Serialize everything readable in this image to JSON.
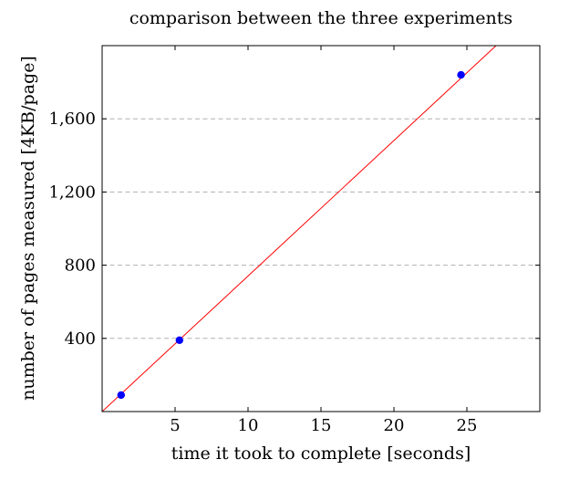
{
  "chart_data": {
    "type": "scatter",
    "title": "comparison between the three experiments",
    "xlabel": "time it took to complete [seconds]",
    "ylabel": "number of pages measured [4KB/page]",
    "xlim": [
      0,
      30
    ],
    "ylim": [
      0,
      2000
    ],
    "x_ticks": [
      5,
      10,
      15,
      20,
      25
    ],
    "x_tick_labels": [
      "5",
      "10",
      "15",
      "20",
      "25"
    ],
    "y_ticks": [
      400,
      800,
      1200,
      1600
    ],
    "y_tick_labels": [
      "400",
      "800",
      "1,200",
      "1,600"
    ],
    "grid": "horizontal dashed",
    "points": [
      {
        "x": 1.3,
        "y": 90
      },
      {
        "x": 5.3,
        "y": 390
      },
      {
        "x": 24.6,
        "y": 1840
      }
    ],
    "trend_line": {
      "x": [
        0,
        27
      ],
      "y": [
        0,
        2000
      ]
    },
    "colors": {
      "points": "#0000ff",
      "trend_line": "#ff0000",
      "grid": "#b0b0b0",
      "axes": "#000000"
    }
  }
}
